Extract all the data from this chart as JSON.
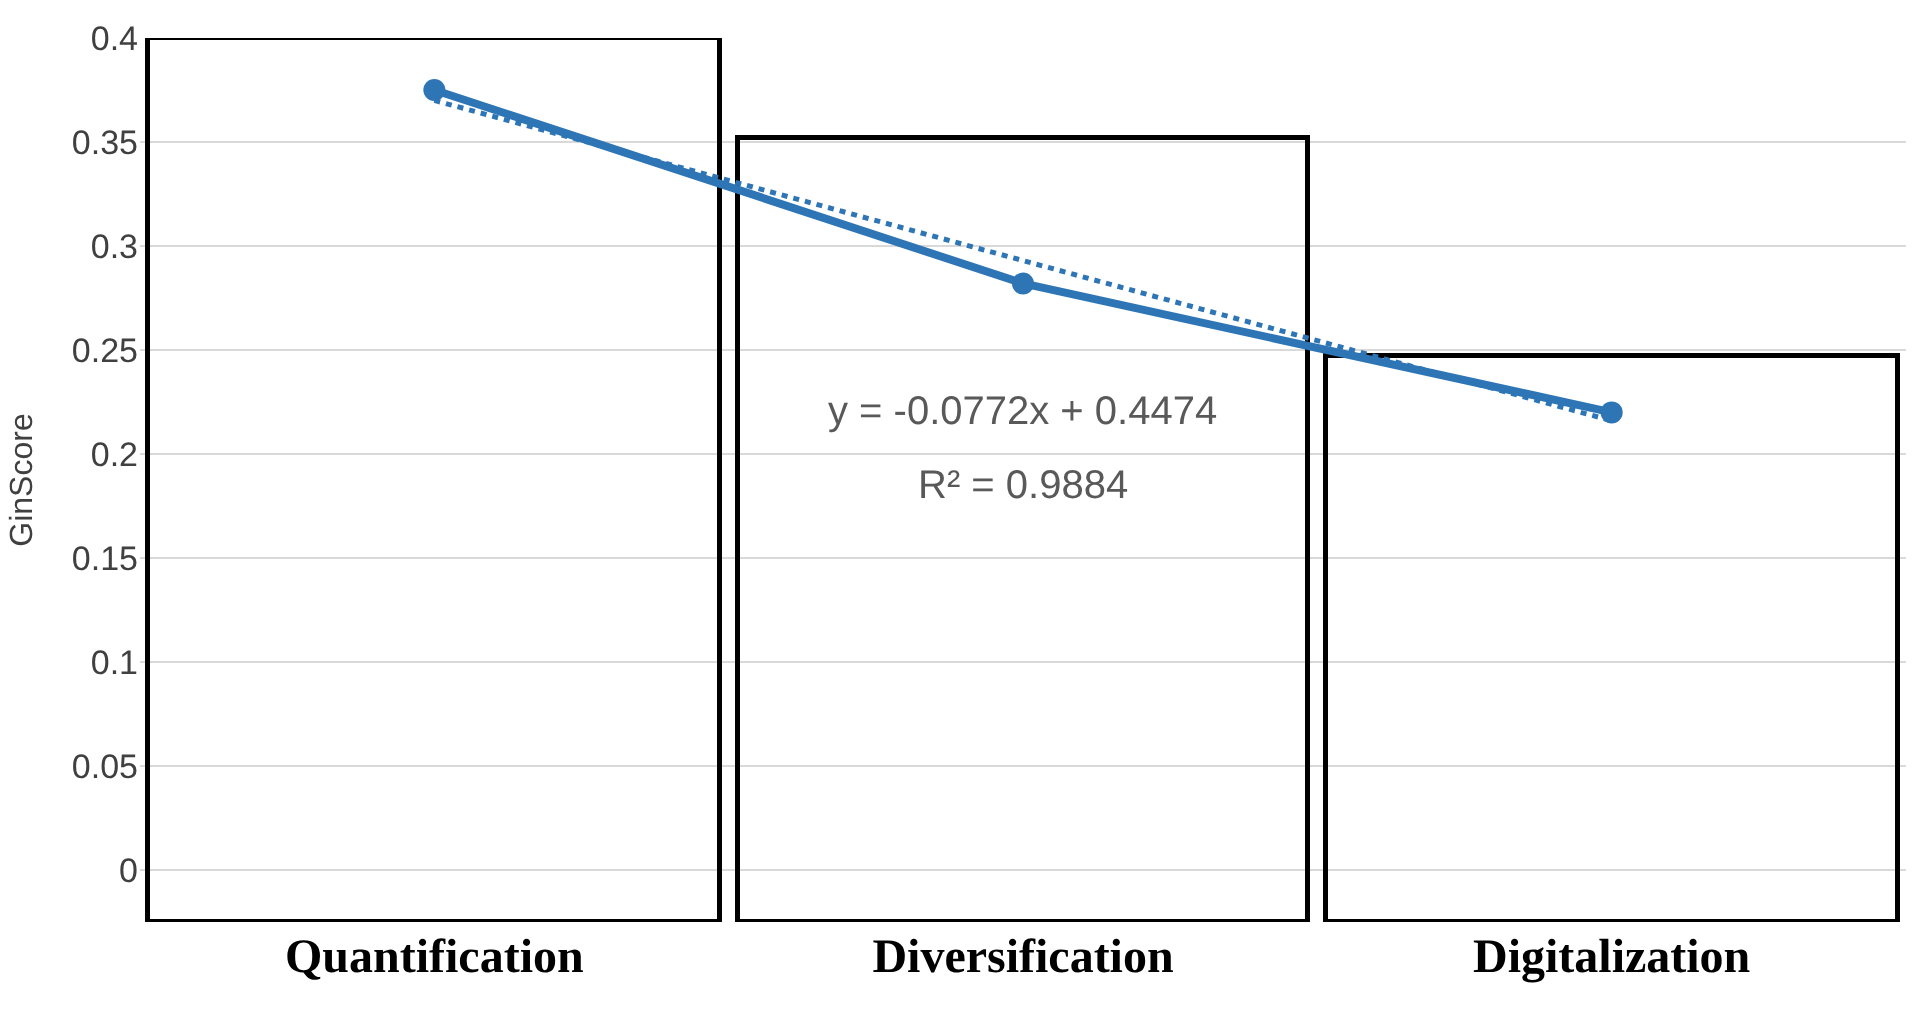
{
  "chart_data": {
    "type": "line",
    "ylabel": "GinScore",
    "categories": [
      "Quantification",
      "Diversification",
      "Digitalization"
    ],
    "series": [
      {
        "type": "bar",
        "color": "#000000",
        "base": [
          -0.025,
          -0.025,
          -0.025
        ],
        "values": [
          0.425,
          0.377,
          0.272
        ]
      },
      {
        "color": "#2e75b6",
        "line_style": "dotted",
        "marker": "none",
        "values": [
          0.37,
          0.293,
          0.216
        ]
      },
      {
        "color": "#2e75b6",
        "line_style": "solid",
        "marker": "circle",
        "values": [
          0.375,
          0.282,
          0.22
        ]
      }
    ],
    "ylim": [
      -0.025,
      0.4
    ],
    "yticks": [
      0,
      0.05,
      0.1,
      0.15,
      0.2,
      0.25,
      0.3,
      0.35,
      0.4
    ],
    "grid": "y",
    "annotations": [
      "y = -0.0772x + 0.4474",
      "R² = 0.9884"
    ]
  }
}
